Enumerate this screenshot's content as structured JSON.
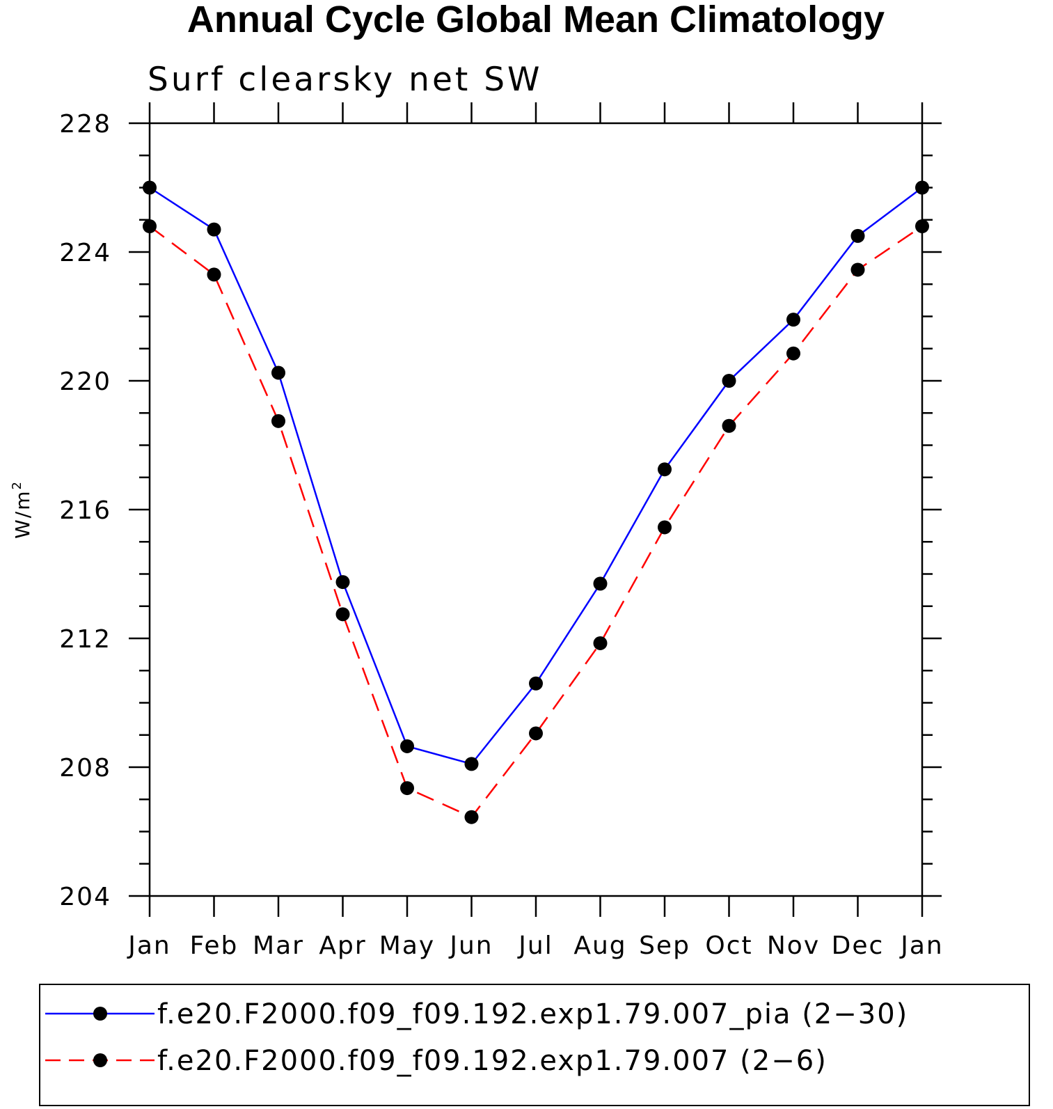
{
  "chart_data": {
    "type": "line",
    "title": "Annual Cycle Global Mean Climatology",
    "subtitle": "Surf clearsky net SW",
    "ylabel": "W/m",
    "ylabel_sup": "2",
    "categories": [
      "Jan",
      "Feb",
      "Mar",
      "Apr",
      "May",
      "Jun",
      "Jul",
      "Aug",
      "Sep",
      "Oct",
      "Nov",
      "Dec",
      "Jan"
    ],
    "ylim": [
      204,
      228
    ],
    "yticks": [
      204,
      208,
      212,
      216,
      220,
      224,
      228
    ],
    "series": [
      {
        "name": "f.e20.F2000.f09_f09.192.exp1.79.007_pia (2−30)",
        "color": "#0000ff",
        "dash": "solid",
        "marker": "filled-circle",
        "values": [
          226.0,
          224.7,
          220.25,
          213.75,
          208.65,
          208.1,
          210.6,
          213.7,
          217.25,
          220.0,
          221.9,
          224.5,
          226.0
        ]
      },
      {
        "name": "f.e20.F2000.f09_f09.192.exp1.79.007 (2−6)",
        "color": "#ff0000",
        "dash": "dashed",
        "marker": "filled-circle",
        "values": [
          224.8,
          223.3,
          218.75,
          212.75,
          207.35,
          206.45,
          209.05,
          211.85,
          215.45,
          218.6,
          220.85,
          223.45,
          224.8
        ]
      }
    ],
    "legend_position": "bottom"
  }
}
